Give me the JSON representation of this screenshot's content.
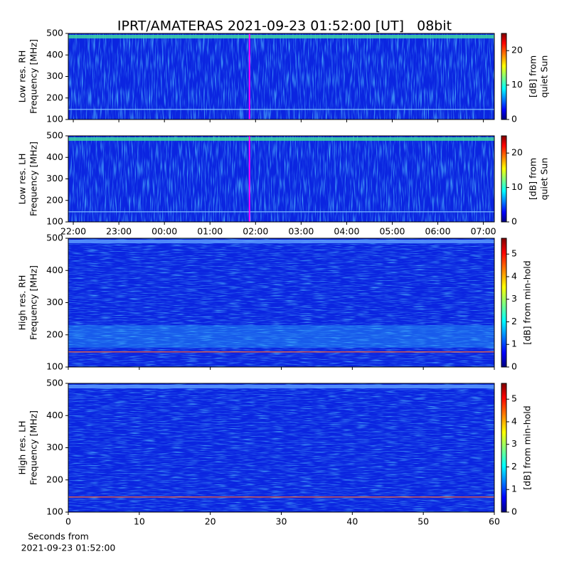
{
  "title": "IPRT/AMATERAS 2021-09-23 01:52:00 [UT]   08bit",
  "chart_data": [
    {
      "type": "heatmap",
      "ylabel": [
        "Low res. RH",
        "Frequency [MHz]"
      ],
      "ylim": [
        100,
        500
      ],
      "yticks": [
        100,
        200,
        300,
        400,
        500
      ],
      "cursor": 25.867,
      "cursor_color": "#ff00ff",
      "colorbar": {
        "lim": [
          0,
          25
        ],
        "ticks": [
          0,
          10,
          20
        ],
        "label": [
          "[dB] from",
          "quiet Sun"
        ]
      }
    },
    {
      "type": "heatmap",
      "ylabel": [
        "Low res. LH",
        "Frequency [MHz]"
      ],
      "ylim": [
        100,
        500
      ],
      "yticks": [
        100,
        200,
        300,
        400,
        500
      ],
      "xlim": [
        21.89,
        31.24
      ],
      "xticks": [
        {
          "value": 22,
          "label": "22:00"
        },
        {
          "value": 23,
          "label": "23:00"
        },
        {
          "value": 24,
          "label": "00:00"
        },
        {
          "value": 25,
          "label": "01:00"
        },
        {
          "value": 26,
          "label": "02:00"
        },
        {
          "value": 27,
          "label": "03:00"
        },
        {
          "value": 28,
          "label": "04:00"
        },
        {
          "value": 29,
          "label": "05:00"
        },
        {
          "value": 30,
          "label": "06:00"
        },
        {
          "value": 31,
          "label": "07:00"
        }
      ],
      "cursor": 25.867,
      "cursor_color": "#ff00ff",
      "colorbar": {
        "lim": [
          0,
          25
        ],
        "ticks": [
          0,
          10,
          20
        ],
        "label": [
          "[dB] from",
          "quiet Sun"
        ]
      }
    },
    {
      "type": "heatmap",
      "ylabel": [
        "High res. RH",
        "Frequency [MHz]"
      ],
      "ylim": [
        100,
        500
      ],
      "yticks": [
        100,
        200,
        300,
        400,
        500
      ],
      "colorbar": {
        "lim": [
          0,
          5.7
        ],
        "ticks": [
          0,
          1,
          2,
          3,
          4,
          5
        ],
        "label": [
          "[dB] from min-hold"
        ]
      }
    },
    {
      "type": "heatmap",
      "ylabel": [
        "High res. LH",
        "Frequency [MHz]"
      ],
      "ylim": [
        100,
        500
      ],
      "yticks": [
        100,
        200,
        300,
        400,
        500
      ],
      "xlim": [
        0,
        60
      ],
      "xticks": [
        0,
        10,
        20,
        30,
        40,
        50,
        60
      ],
      "xlabel": [
        "Seconds from",
        "2021-09-23 01:52:00"
      ],
      "colorbar": {
        "lim": [
          0,
          5.7
        ],
        "ticks": [
          0,
          1,
          2,
          3,
          4,
          5
        ],
        "label": [
          "[dB] from min-hold"
        ]
      }
    }
  ]
}
